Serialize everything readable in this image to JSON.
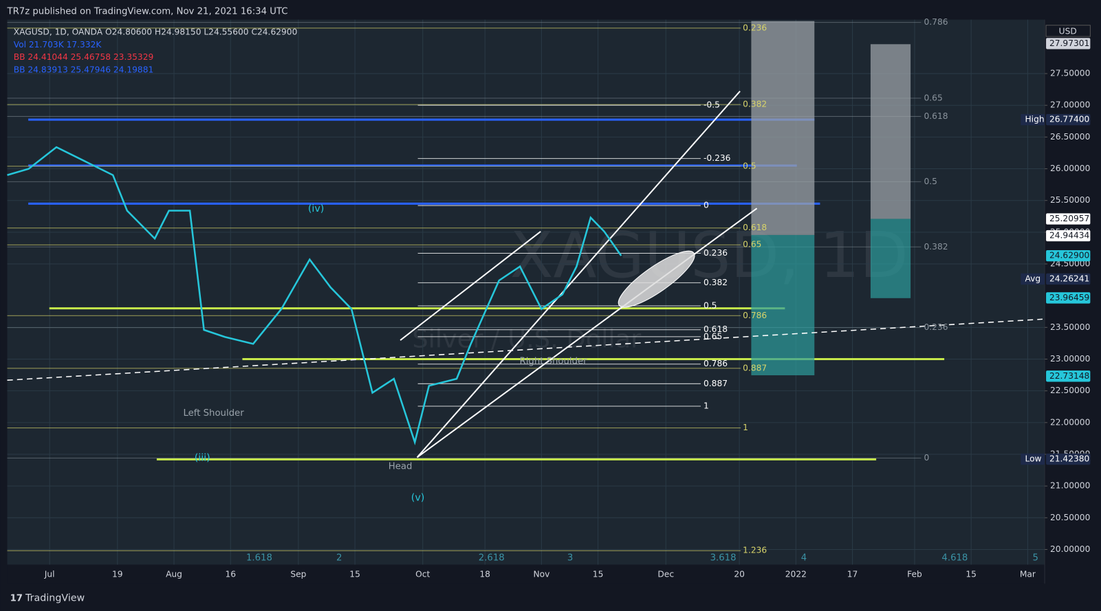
{
  "header": {
    "publisher": "TR7z published on TradingView.com, Nov 21, 2021 16:34 UTC",
    "legend": [
      "XAGUSD, 1D, OANDA  O24.80600  H24.98150  L24.55600  C24.62900",
      "Vol  21.703K  17.332K",
      "BB  24.41044  25.46758  23.35329",
      "BB  24.83913  25.47946  24.19881"
    ],
    "watermark": "XAGUSD, 1D",
    "watermark_sub": "Silver / U.S. Dollar"
  },
  "footer": {
    "brand": "TradingView"
  },
  "chart_data": {
    "type": "line",
    "currency": "USD",
    "x": [
      -7.5,
      -3.7,
      1.2,
      6.2,
      11.2,
      13.7,
      18.6,
      21.1,
      24.8,
      27.3,
      31,
      36,
      41,
      46,
      49.7,
      53.4,
      57.1,
      60.9,
      64.6,
      67.1,
      72,
      74.5,
      79.5,
      83.2,
      87,
      90.7,
      93.2,
      95.7,
      98.1,
      101.1
    ],
    "values": [
      25.9,
      26.0,
      26.34,
      26.12,
      25.9,
      25.34,
      24.9,
      25.34,
      25.34,
      23.46,
      23.35,
      23.24,
      23.79,
      24.57,
      24.13,
      23.79,
      22.47,
      22.69,
      21.69,
      22.58,
      22.69,
      23.24,
      24.24,
      24.46,
      23.79,
      24.02,
      24.46,
      25.23,
      25.01,
      24.63
    ],
    "color": "#26c6da",
    "xlim": [
      -7.5,
      176
    ],
    "ylim": [
      19.76,
      28.35
    ],
    "xticks": [
      {
        "value": 0,
        "label": "Jul"
      },
      {
        "value": 12,
        "label": "19"
      },
      {
        "value": 22,
        "label": "Aug"
      },
      {
        "value": 32,
        "label": "16"
      },
      {
        "value": 44,
        "label": "Sep"
      },
      {
        "value": 54,
        "label": "15"
      },
      {
        "value": 66,
        "label": "Oct"
      },
      {
        "value": 77,
        "label": "18"
      },
      {
        "value": 87,
        "label": "Nov"
      },
      {
        "value": 97,
        "label": "15"
      },
      {
        "value": 109,
        "label": "Dec"
      },
      {
        "value": 122,
        "label": "20"
      },
      {
        "value": 132,
        "label": "2022"
      },
      {
        "value": 142,
        "label": "17"
      },
      {
        "value": 153,
        "label": "Feb"
      },
      {
        "value": 163,
        "label": "15"
      },
      {
        "value": 173,
        "label": "Mar"
      }
    ],
    "yticks": [
      {
        "value": 20,
        "label": "20.00000"
      },
      {
        "value": 20.5,
        "label": "20.50000"
      },
      {
        "value": 21,
        "label": "21.00000"
      },
      {
        "value": 21.5,
        "label": "21.50000"
      },
      {
        "value": 22,
        "label": "22.00000"
      },
      {
        "value": 22.5,
        "label": "22.50000"
      },
      {
        "value": 23,
        "label": "23.00000"
      },
      {
        "value": 23.5,
        "label": "23.50000"
      },
      {
        "value": 24.5,
        "label": "24.50000"
      },
      {
        "value": 25,
        "label": "25.00000"
      },
      {
        "value": 25.5,
        "label": "25.50000"
      },
      {
        "value": 26,
        "label": "26.00000"
      },
      {
        "value": 26.5,
        "label": "26.50000"
      },
      {
        "value": 27,
        "label": "27.00000"
      },
      {
        "value": 27.5,
        "label": "27.50000"
      }
    ],
    "price_labels": [
      27.97301,
      25.20957,
      24.94434,
      {
        "value": 24.629,
        "label": "24.62900"
      },
      24.26241,
      23.96459,
      22.73148,
      {
        "value": 26.774,
        "label": "26.77400"
      },
      {
        "value": 21.4238,
        "label": "21.42380"
      }
    ],
    "price_tags": [
      "Avg",
      "High",
      "Low"
    ],
    "levels": [
      {
        "value": 26.774,
        "color": "#2962ff"
      },
      {
        "value": 26.05,
        "color": "#2962ff"
      },
      {
        "value": 25.45,
        "color": "#2962ff"
      },
      {
        "value": 23.8,
        "color": "#c6e84a"
      },
      {
        "value": 23.0,
        "color": "#c6e84a"
      },
      {
        "value": 21.42,
        "color": "#c6e84a"
      }
    ],
    "annotations": {
      "patterns": [
        "Left Shoulder",
        "Head",
        "Right Shoulder"
      ],
      "waves": [
        "(iv)",
        "(iii)",
        "(v)"
      ],
      "fib_yellow": [
        "0.236",
        "0.382",
        "0.5",
        "0.618",
        "0.65",
        "0.786",
        "0.887",
        "1",
        "1.236"
      ],
      "fib_white": [
        "-0.5",
        "-0.236",
        "0",
        "0.236",
        "0.382",
        "0.5",
        "0.618",
        "0.65",
        "0.786",
        "0.887",
        "1"
      ],
      "fib_gray": [
        "0.786",
        "0.65",
        "0.618",
        "0.5",
        "0.382",
        "0.236",
        "0"
      ],
      "fib_ext": [
        "1.618",
        "2",
        "2.618",
        "3",
        "3.618",
        "4",
        "4.618",
        "5"
      ]
    }
  }
}
